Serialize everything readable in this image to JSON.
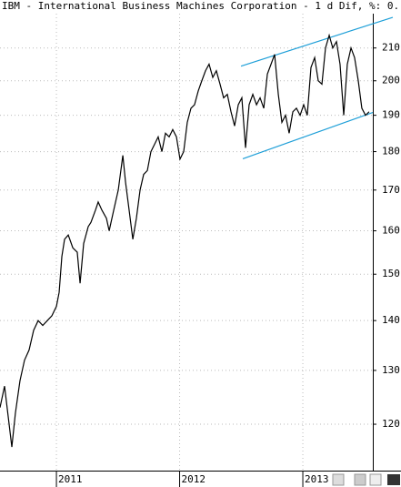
{
  "chart_data": {
    "type": "line",
    "title": "IBM - International Business Machines Corporation -  1 d Dif, %: 0.",
    "x": [
      2010.542,
      2010.579,
      2010.616,
      2010.638,
      2010.667,
      2010.704,
      2010.741,
      2010.778,
      2010.815,
      2010.852,
      2010.889,
      2010.926,
      2010.963,
      2011.0,
      2011.022,
      2011.044,
      2011.066,
      2011.096,
      2011.133,
      2011.169,
      2011.192,
      2011.221,
      2011.258,
      2011.28,
      2011.317,
      2011.339,
      2011.369,
      2011.406,
      2011.428,
      2011.465,
      2011.502,
      2011.539,
      2011.561,
      2011.59,
      2011.62,
      2011.649,
      2011.679,
      2011.708,
      2011.738,
      2011.767,
      2011.797,
      2011.826,
      2011.856,
      2011.885,
      2011.915,
      2011.944,
      2011.974,
      2012.003,
      2012.033,
      2012.062,
      2012.092,
      2012.121,
      2012.151,
      2012.18,
      2012.21,
      2012.239,
      2012.269,
      2012.298,
      2012.328,
      2012.357,
      2012.387,
      2012.417,
      2012.446,
      2012.476,
      2012.505,
      2012.535,
      2012.564,
      2012.594,
      2012.624,
      2012.653,
      2012.683,
      2012.712,
      2012.742,
      2012.771,
      2012.801,
      2012.83,
      2012.86,
      2012.889,
      2012.919,
      2012.948,
      2012.978,
      2013.007,
      2013.036,
      2013.066,
      2013.096,
      2013.125,
      2013.155,
      2013.184,
      2013.214,
      2013.243,
      2013.273,
      2013.302,
      2013.332,
      2013.361,
      2013.391,
      2013.42,
      2013.45,
      2013.479,
      2013.509,
      2013.538
    ],
    "series": [
      {
        "name": "IBM",
        "color": "#000000",
        "values": [
          123,
          127,
          120,
          116,
          122,
          128,
          132,
          134,
          138,
          140,
          139,
          140,
          141,
          143,
          146,
          154,
          158,
          159,
          156,
          155,
          148,
          157,
          161,
          162,
          165,
          167,
          165,
          163,
          160,
          165,
          170,
          179,
          172,
          165,
          158,
          163,
          170,
          174,
          175,
          180,
          182,
          184,
          180,
          185,
          184,
          186,
          184,
          178,
          180,
          188,
          192,
          193,
          197,
          200,
          203,
          205,
          201,
          203,
          199,
          195,
          196,
          191,
          187,
          193,
          195,
          181,
          193,
          196,
          193,
          195,
          192,
          202,
          205,
          208,
          196,
          188,
          190,
          185,
          191,
          192,
          190,
          193,
          190,
          204,
          207,
          200,
          199,
          210,
          214,
          210,
          212,
          205,
          190,
          205,
          210,
          207,
          200,
          192,
          190,
          191
        ]
      }
    ],
    "channel_lines": [
      {
        "color": "#1e9fd8",
        "x": [
          2012.498,
          2013.73
        ],
        "y": [
          204.4,
          219.8
        ]
      },
      {
        "color": "#1e9fd8",
        "x": [
          2012.513,
          2013.568
        ],
        "y": [
          178.1,
          190.8
        ]
      }
    ],
    "xlim": [
      2010.542,
      2013.568
    ],
    "xticks": [
      2011,
      2012,
      2013
    ],
    "ylim": [
      112,
      221
    ],
    "yticks": [
      120,
      130,
      140,
      150,
      160,
      170,
      180,
      190,
      200,
      210
    ],
    "log_scale": true,
    "grid": true
  }
}
